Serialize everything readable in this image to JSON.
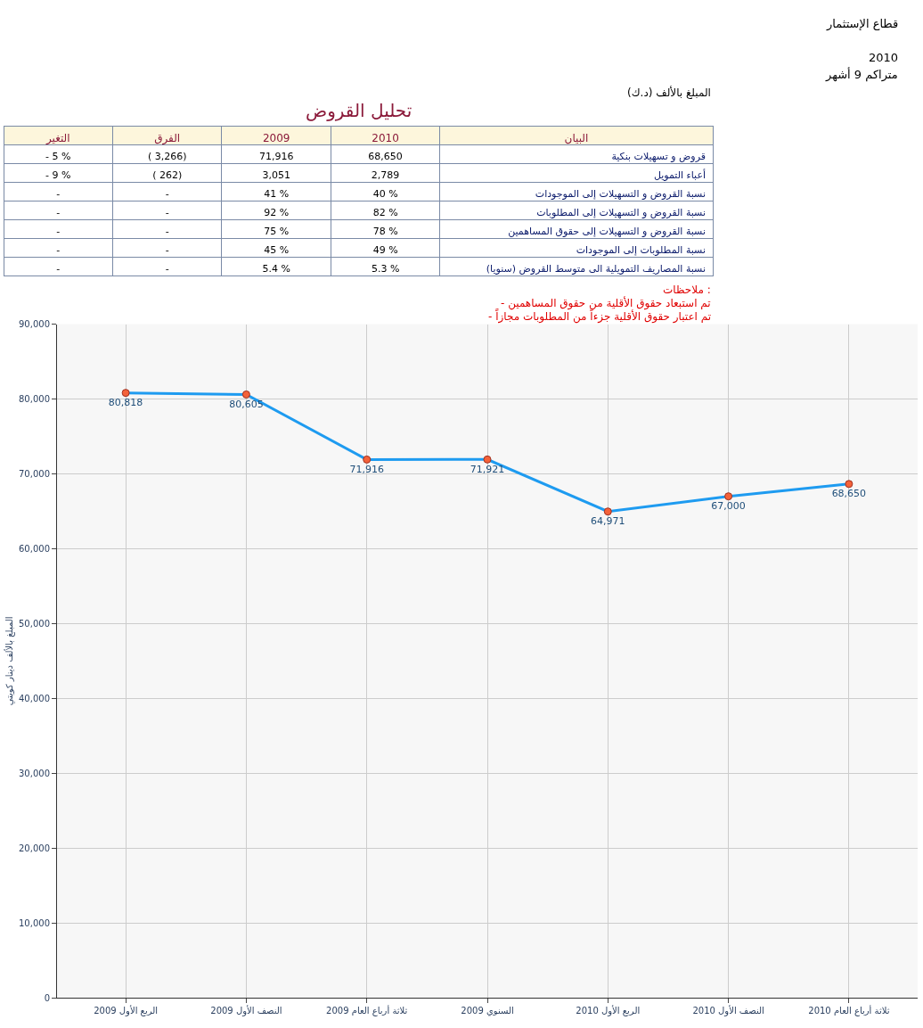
{
  "chart_data": [
    {
      "type": "other",
      "title": "تحليل القروض",
      "annotations": [
        "قطاع الإستثمار",
        "2010",
        "متراكم 9 أشهر",
        "المبلغ بالألف (د.ك)",
        "ملاحظات :",
        "- تم استبعاد حقوق الأقلية من حقوق المساهمين",
        "- تم اعتبار حقوق الأقلية جزءاً من المطلوبات مجازاً"
      ],
      "categories": [
        "التغير",
        "الفرق",
        "2009",
        "2010",
        "البيان"
      ],
      "y_categories": [
        "قروض و تسهيلات بنكية",
        "أعباء التمويل",
        "نسبة القروض و التسهيلات إلى الموجودات",
        "نسبة القروض و التسهيلات إلى المطلوبات",
        "نسبة القروض و التسهيلات إلى حقوق المساهمين",
        "نسبة المطلوبات إلى الموجودات",
        "نسبة المصاريف التمويلية الى متوسط القروض (سنويا)"
      ],
      "cell_labels": [
        [
          "- 5 %",
          "( 3,266)",
          "71,916",
          "68,650"
        ],
        [
          "- 9 %",
          "( 262)",
          "3,051",
          "2,789"
        ],
        [
          "-",
          "-",
          "41 %",
          "40 %"
        ],
        [
          "-",
          "-",
          "92 %",
          "82 %"
        ],
        [
          "-",
          "-",
          "75 %",
          "78 %"
        ],
        [
          "-",
          "-",
          "45 %",
          "49 %"
        ],
        [
          "-",
          "-",
          "5.4 %",
          "5.3 %"
        ]
      ]
    },
    {
      "type": "line",
      "ylabel": "المبلغ بالألف دينار كويتي",
      "categories": [
        "الربع الأول 2009",
        "النصف الأول 2009",
        "ثلاثة أرباع العام 2009",
        "السنوي 2009",
        "الربع الأول 2010",
        "النصف الأول 2010",
        "ثلاثة أرباع العام 2010"
      ],
      "series": [
        {
          "color": "#1e9bf0",
          "values": [
            80818,
            80605,
            71916,
            71921,
            64971,
            67000,
            68650
          ],
          "value_labels": [
            "80,818",
            "80,605",
            "71,916",
            "71,921",
            "64,971",
            "67,000",
            "68,650"
          ]
        }
      ],
      "ylim": [
        0,
        90000
      ],
      "yticks": [
        {
          "value": 0,
          "label": "0"
        },
        {
          "value": 10000,
          "label": "10,000"
        },
        {
          "value": 20000,
          "label": "20,000"
        },
        {
          "value": 30000,
          "label": "30,000"
        },
        {
          "value": 40000,
          "label": "40,000"
        },
        {
          "value": 50000,
          "label": "50,000"
        },
        {
          "value": 60000,
          "label": "60,000"
        },
        {
          "value": 70000,
          "label": "70,000"
        },
        {
          "value": 80000,
          "label": "80,000"
        },
        {
          "value": 90000,
          "label": "90,000"
        }
      ],
      "grid": true,
      "marker": "circle",
      "line_style": "solid"
    }
  ]
}
